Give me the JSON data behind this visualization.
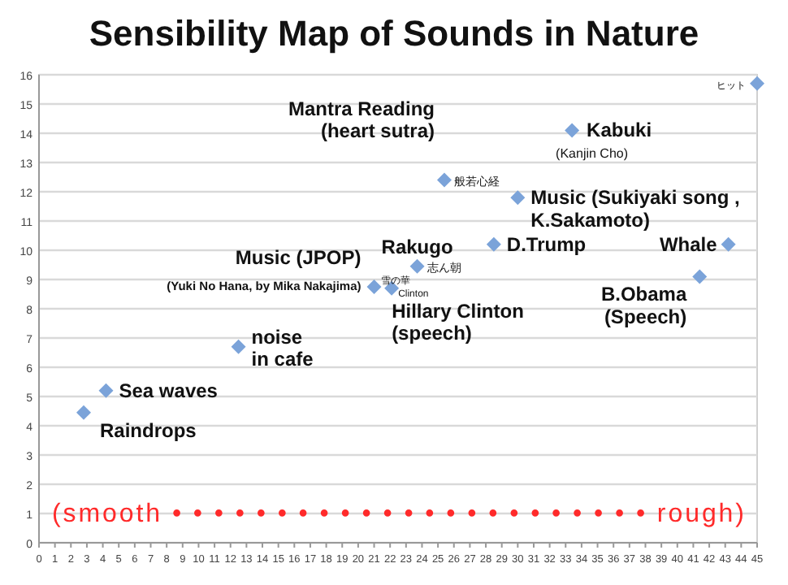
{
  "chart_data": {
    "type": "scatter",
    "title": "Sensibility Map of Sounds in Nature",
    "x": [
      2.8,
      4.2,
      12.5,
      21,
      22.1,
      23.7,
      25.4,
      33.4,
      30,
      28.5,
      43.2,
      41.4,
      45
    ],
    "series": [
      {
        "color": "#7ba3d9",
        "values": [
          4.45,
          5.2,
          6.7,
          8.75,
          8.7,
          9.45,
          12.4,
          14.1,
          11.8,
          10.2,
          10.2,
          9.1,
          15.7
        ]
      }
    ],
    "marker": "diamond",
    "grid": "y",
    "xlim": [
      0,
      45
    ],
    "xticks": [
      0,
      1,
      2,
      3,
      4,
      5,
      6,
      7,
      8,
      9,
      10,
      11,
      12,
      13,
      14,
      15,
      16,
      17,
      18,
      19,
      20,
      21,
      22,
      23,
      24,
      25,
      26,
      27,
      28,
      29,
      30,
      31,
      32,
      33,
      34,
      35,
      36,
      37,
      38,
      39,
      40,
      41,
      42,
      43,
      44,
      45
    ],
    "ylim": [
      0,
      16
    ],
    "yticks": [
      0,
      1,
      2,
      3,
      4,
      5,
      6,
      7,
      8,
      9,
      10,
      11,
      12,
      13,
      14,
      15,
      16
    ],
    "annotations": [
      {
        "text": "Raindrops",
        "x": 2.8,
        "y": 4.45
      },
      {
        "text": "Sea waves",
        "x": 4.2,
        "y": 5.2
      },
      {
        "text": "noise\nin cafe",
        "x": 12.5,
        "y": 6.7
      },
      {
        "text": "Music (JPOP)",
        "x": 21,
        "y": 8.75
      },
      {
        "text": "(Yuki No Hana, by Mika Nakajima)",
        "x": 21,
        "y": 8.75
      },
      {
        "text": "雪の華",
        "x": 21,
        "y": 8.75
      },
      {
        "text": "Clinton",
        "x": 22.1,
        "y": 8.7
      },
      {
        "text": "Hillary Clinton\n(speech)",
        "x": 22.1,
        "y": 8.7
      },
      {
        "text": "志ん朝",
        "x": 23.7,
        "y": 9.45
      },
      {
        "text": "Rakugo",
        "x": 23.7,
        "y": 9.45
      },
      {
        "text": "般若心経",
        "x": 25.4,
        "y": 12.4
      },
      {
        "text": "Mantra Reading\n(heart sutra)",
        "x": 25.4,
        "y": 12.4
      },
      {
        "text": "Kabuki",
        "x": 33.4,
        "y": 14.1
      },
      {
        "text": "(Kanjin Cho)",
        "x": 33.4,
        "y": 14.1
      },
      {
        "text": "Music (Sukiyaki song ,\nK.Sakamoto)",
        "x": 30,
        "y": 11.8
      },
      {
        "text": "D.Trump",
        "x": 28.5,
        "y": 10.2
      },
      {
        "text": "Whale",
        "x": 43.2,
        "y": 10.2
      },
      {
        "text": "B.Obama\n(Speech)",
        "x": 41.4,
        "y": 9.1
      },
      {
        "text": "ヒット",
        "x": 45,
        "y": 15.7
      },
      "(smooth • • • • • • • • • • • • • • • • • • • • • • • rough)"
    ]
  }
}
